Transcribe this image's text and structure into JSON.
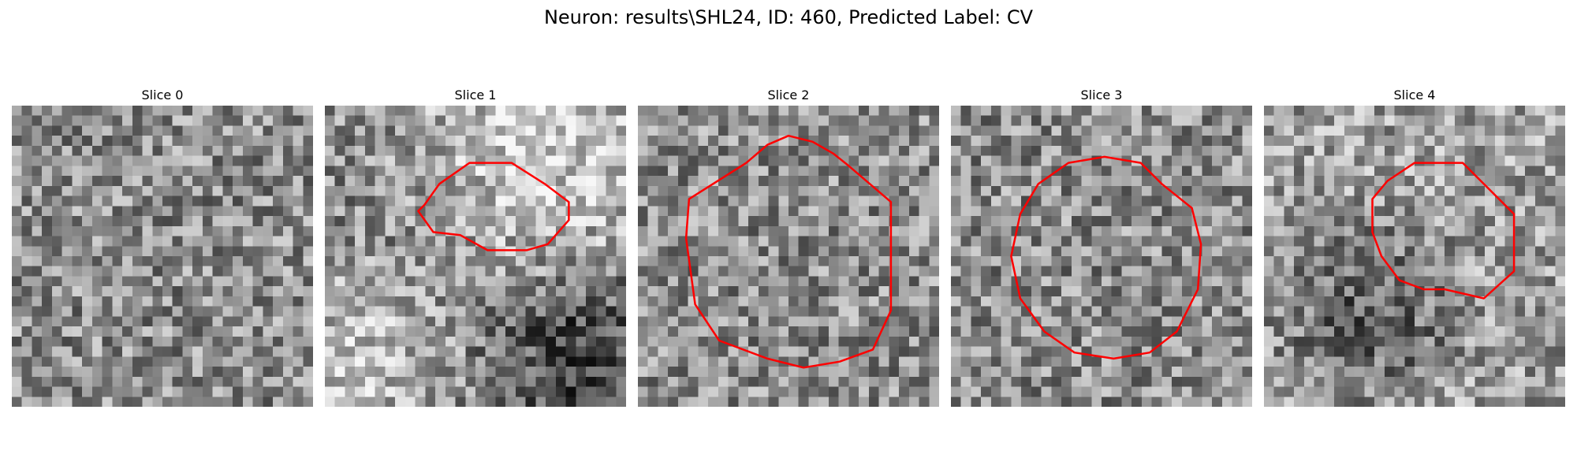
{
  "figure": {
    "title": "Neuron: results\\SHL24, ID: 460, Predicted Label: CV",
    "contour_color": "#ff0000"
  },
  "slices": [
    {
      "title": "Slice 0",
      "shading": "noise",
      "contour": []
    },
    {
      "title": "Slice 1",
      "shading": "bright-top",
      "contour": [
        [
          0.33,
          0.33
        ],
        [
          0.38,
          0.26
        ],
        [
          0.48,
          0.19
        ],
        [
          0.62,
          0.19
        ],
        [
          0.73,
          0.26
        ],
        [
          0.81,
          0.32
        ],
        [
          0.81,
          0.38
        ],
        [
          0.74,
          0.46
        ],
        [
          0.67,
          0.48
        ],
        [
          0.54,
          0.48
        ],
        [
          0.45,
          0.43
        ],
        [
          0.36,
          0.42
        ],
        [
          0.31,
          0.35
        ]
      ]
    },
    {
      "title": "Slice 2",
      "shading": "noise",
      "contour": [
        [
          0.36,
          0.19
        ],
        [
          0.43,
          0.13
        ],
        [
          0.5,
          0.1
        ],
        [
          0.58,
          0.12
        ],
        [
          0.65,
          0.16
        ],
        [
          0.7,
          0.2
        ],
        [
          0.84,
          0.32
        ],
        [
          0.84,
          0.68
        ],
        [
          0.78,
          0.81
        ],
        [
          0.67,
          0.85
        ],
        [
          0.55,
          0.87
        ],
        [
          0.43,
          0.84
        ],
        [
          0.27,
          0.78
        ],
        [
          0.19,
          0.66
        ],
        [
          0.16,
          0.44
        ],
        [
          0.17,
          0.31
        ]
      ]
    },
    {
      "title": "Slice 3",
      "shading": "noise",
      "contour": [
        [
          0.39,
          0.19
        ],
        [
          0.51,
          0.17
        ],
        [
          0.63,
          0.19
        ],
        [
          0.7,
          0.26
        ],
        [
          0.8,
          0.34
        ],
        [
          0.83,
          0.46
        ],
        [
          0.82,
          0.61
        ],
        [
          0.75,
          0.75
        ],
        [
          0.66,
          0.82
        ],
        [
          0.54,
          0.84
        ],
        [
          0.41,
          0.82
        ],
        [
          0.31,
          0.75
        ],
        [
          0.23,
          0.64
        ],
        [
          0.2,
          0.5
        ],
        [
          0.23,
          0.36
        ],
        [
          0.29,
          0.26
        ]
      ]
    },
    {
      "title": "Slice 4",
      "shading": "dark-center",
      "contour": [
        [
          0.5,
          0.19
        ],
        [
          0.66,
          0.19
        ],
        [
          0.74,
          0.27
        ],
        [
          0.83,
          0.36
        ],
        [
          0.83,
          0.55
        ],
        [
          0.73,
          0.64
        ],
        [
          0.6,
          0.61
        ],
        [
          0.53,
          0.61
        ],
        [
          0.45,
          0.58
        ],
        [
          0.39,
          0.5
        ],
        [
          0.36,
          0.42
        ],
        [
          0.36,
          0.31
        ],
        [
          0.41,
          0.25
        ]
      ]
    }
  ]
}
